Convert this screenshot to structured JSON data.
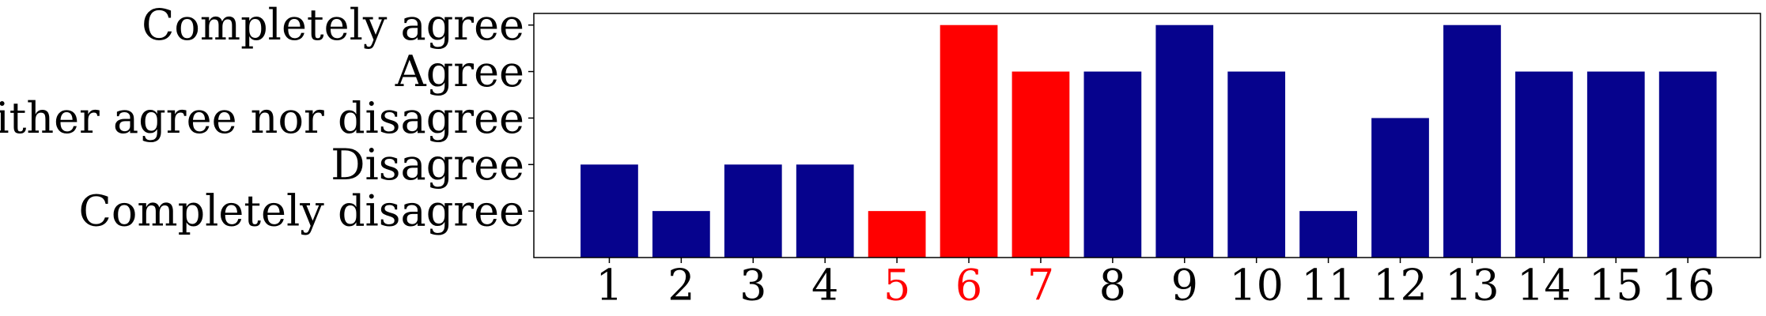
{
  "chart_data": {
    "type": "bar",
    "categories": [
      "1",
      "2",
      "3",
      "4",
      "5",
      "6",
      "7",
      "8",
      "9",
      "10",
      "11",
      "12",
      "13",
      "14",
      "15",
      "16"
    ],
    "values": [
      2,
      1,
      2,
      2,
      1,
      5,
      4,
      4,
      5,
      4,
      1,
      3,
      5,
      4,
      4,
      4
    ],
    "ylim": [
      0,
      5.25
    ],
    "yticks": [
      {
        "value": 1,
        "label": "Completely disagree"
      },
      {
        "value": 2,
        "label": "Disagree"
      },
      {
        "value": 3,
        "label": "Neither agree nor disagree"
      },
      {
        "value": 4,
        "label": "Agree"
      },
      {
        "value": 5,
        "label": "Completely agree"
      }
    ],
    "highlighted_categories": [
      "5",
      "6",
      "7"
    ],
    "colors": {
      "default_bar": "#06038D",
      "highlight_bar": "#FF0000",
      "default_label": "#000000",
      "highlight_label": "#FF0000"
    },
    "title": "",
    "xlabel": "",
    "ylabel": "",
    "grid": false,
    "legend": "none"
  }
}
